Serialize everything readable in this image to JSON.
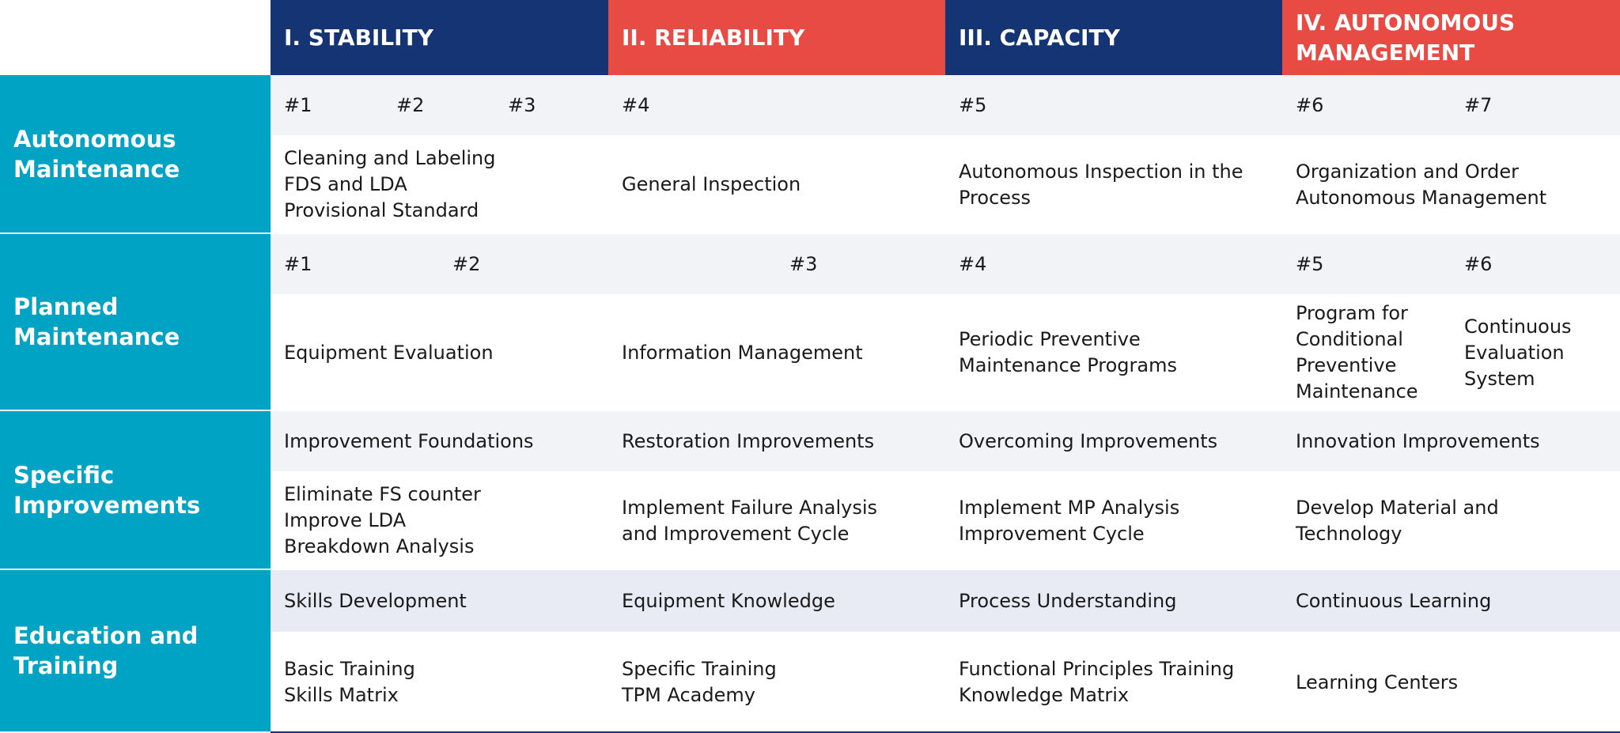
{
  "columns": [
    "I. STABILITY",
    "II. RELIABILITY",
    "III. CAPACITY",
    "IV. AUTONOMOUS MANAGEMENT"
  ],
  "rows": [
    {
      "label": "Autonomous Maintenance",
      "heads": [
        [
          "#1",
          "#2",
          "#3"
        ],
        [
          "#4"
        ],
        [
          "#5"
        ],
        [
          "#6",
          "#7"
        ]
      ],
      "content": [
        [
          [
            "Cleaning and Labeling",
            "FDS and LDA",
            "Provisional Standard"
          ]
        ],
        [
          [
            "General Inspection"
          ]
        ],
        [
          [
            "Autonomous Inspection in the",
            "Process"
          ]
        ],
        [
          [
            "Organization and Order",
            "Autonomous Management"
          ]
        ]
      ]
    },
    {
      "label": "Planned Maintenance",
      "heads": [
        [
          "#1",
          "#2"
        ],
        [
          "#3"
        ],
        [
          "#4"
        ],
        [
          "#5",
          "#6"
        ]
      ],
      "content": [
        [
          [
            "Equipment Evaluation"
          ]
        ],
        [
          [
            "Information Management"
          ]
        ],
        [
          [
            "Periodic Preventive",
            "Maintenance Programs"
          ]
        ],
        [
          [
            "Program for",
            "Conditional",
            "Preventive",
            "Maintenance"
          ],
          [
            "Continuous",
            "Evaluation",
            "System"
          ]
        ]
      ]
    },
    {
      "label": "Specific Improvements",
      "heads": [
        [
          "Improvement Foundations"
        ],
        [
          "Restoration Improvements"
        ],
        [
          "Overcoming Improvements"
        ],
        [
          "Innovation Improvements"
        ]
      ],
      "content": [
        [
          [
            "Eliminate FS counter",
            "Improve LDA",
            "Breakdown Analysis"
          ]
        ],
        [
          [
            "Implement Failure Analysis",
            "and Improvement Cycle"
          ]
        ],
        [
          [
            "Implement MP Analysis",
            "Improvement Cycle"
          ]
        ],
        [
          [
            "Develop Material and",
            "Technology"
          ]
        ]
      ]
    },
    {
      "label": "Education and Training",
      "heads": [
        [
          "Skills Development"
        ],
        [
          "Equipment Knowledge"
        ],
        [
          "Process Understanding"
        ],
        [
          "Continuous Learning"
        ]
      ],
      "content": [
        [
          [
            "Basic Training",
            "Skills Matrix"
          ]
        ],
        [
          [
            "Specific Training",
            "TPM Academy"
          ]
        ],
        [
          [
            "Functional Principles Training",
            "Knowledge Matrix"
          ]
        ],
        [
          [
            "Learning Centers"
          ]
        ]
      ]
    }
  ]
}
